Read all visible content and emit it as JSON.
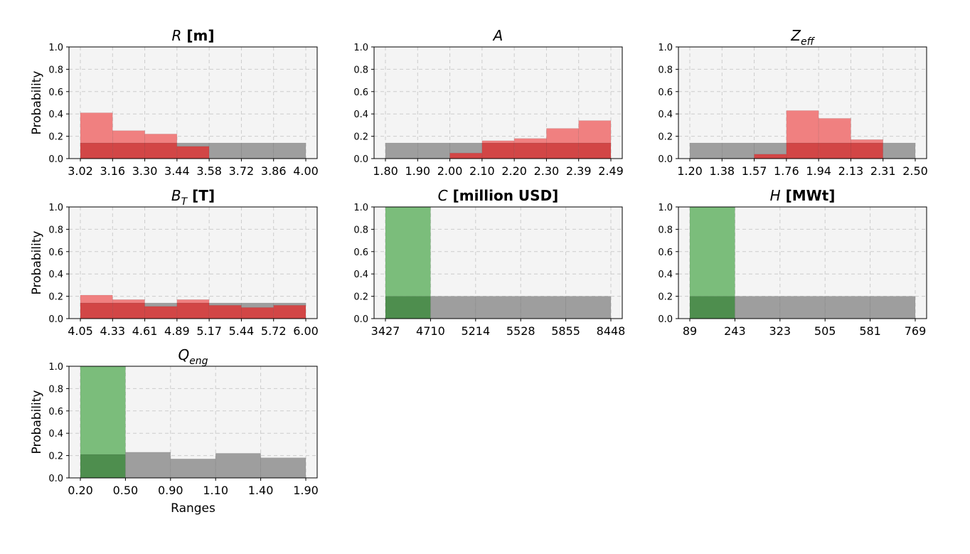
{
  "figure": {
    "ylabel": "Probability",
    "xlabel": "Ranges"
  },
  "colors": {
    "panel_bg": "#f4f4f4",
    "grid": "#cccccc",
    "prior": "#9e9e9e",
    "posterior_red": "#f08080",
    "overlap_red": "#d24646",
    "posterior_green": "#7bbd7b",
    "overlap_green": "#4e8e4e"
  },
  "chart_data": [
    {
      "type": "bar",
      "title": {
        "italic": "R",
        "bold": " [m]"
      },
      "ylim": [
        0,
        1.0
      ],
      "yticks": [
        "0.0",
        "0.2",
        "0.4",
        "0.6",
        "0.8",
        "1.0"
      ],
      "xticks": [
        "3.02",
        "3.16",
        "3.30",
        "3.44",
        "3.58",
        "3.72",
        "3.86",
        "4.00"
      ],
      "grid": true,
      "posterior_color": "red",
      "series": [
        {
          "role": "prior",
          "values": [
            0.14,
            0.14,
            0.14,
            0.14,
            0.14,
            0.14,
            0.14
          ]
        },
        {
          "role": "posterior",
          "values": [
            0.41,
            0.25,
            0.22,
            0.11,
            0.0,
            0.0,
            0.0
          ]
        }
      ]
    },
    {
      "type": "bar",
      "title": {
        "italic": "A",
        "bold": ""
      },
      "ylim": [
        0,
        1.0
      ],
      "yticks": [
        "0.0",
        "0.2",
        "0.4",
        "0.6",
        "0.8",
        "1.0"
      ],
      "xticks": [
        "1.80",
        "1.90",
        "2.00",
        "2.10",
        "2.20",
        "2.30",
        "2.39",
        "2.49"
      ],
      "grid": true,
      "posterior_color": "red",
      "series": [
        {
          "role": "prior",
          "values": [
            0.14,
            0.14,
            0.14,
            0.14,
            0.14,
            0.14,
            0.14
          ]
        },
        {
          "role": "posterior",
          "values": [
            0.0,
            0.0,
            0.05,
            0.16,
            0.18,
            0.27,
            0.34
          ]
        }
      ]
    },
    {
      "type": "bar",
      "title": {
        "italic": "Z",
        "sub": "eff",
        "bold": ""
      },
      "ylim": [
        0,
        1.0
      ],
      "yticks": [
        "0.0",
        "0.2",
        "0.4",
        "0.6",
        "0.8",
        "1.0"
      ],
      "xticks": [
        "1.20",
        "1.38",
        "1.57",
        "1.76",
        "1.94",
        "2.13",
        "2.31",
        "2.50"
      ],
      "grid": true,
      "posterior_color": "red",
      "series": [
        {
          "role": "prior",
          "values": [
            0.14,
            0.14,
            0.14,
            0.14,
            0.14,
            0.14,
            0.14
          ]
        },
        {
          "role": "posterior",
          "values": [
            0.0,
            0.0,
            0.04,
            0.43,
            0.36,
            0.17,
            0.0
          ]
        }
      ]
    },
    {
      "type": "bar",
      "title": {
        "italic": "B",
        "sub": "T",
        "bold": " [T]"
      },
      "ylim": [
        0,
        1.0
      ],
      "yticks": [
        "0.0",
        "0.2",
        "0.4",
        "0.6",
        "0.8",
        "1.0"
      ],
      "xticks": [
        "4.05",
        "4.33",
        "4.61",
        "4.89",
        "5.17",
        "5.44",
        "5.72",
        "6.00"
      ],
      "grid": true,
      "posterior_color": "red",
      "series": [
        {
          "role": "prior",
          "values": [
            0.14,
            0.14,
            0.14,
            0.14,
            0.14,
            0.14,
            0.14
          ]
        },
        {
          "role": "posterior",
          "values": [
            0.21,
            0.17,
            0.11,
            0.17,
            0.12,
            0.1,
            0.12
          ]
        }
      ]
    },
    {
      "type": "bar",
      "title": {
        "italic": "C",
        "bold": " [million USD]"
      },
      "ylim": [
        0,
        1.0
      ],
      "yticks": [
        "0.0",
        "0.2",
        "0.4",
        "0.6",
        "0.8",
        "1.0"
      ],
      "xticks": [
        "3427",
        "4710",
        "5214",
        "5528",
        "5855",
        "8448"
      ],
      "grid": true,
      "posterior_color": "green",
      "series": [
        {
          "role": "prior",
          "values": [
            0.2,
            0.2,
            0.2,
            0.2,
            0.2
          ]
        },
        {
          "role": "posterior",
          "values": [
            1.0,
            0.0,
            0.0,
            0.0,
            0.0
          ]
        }
      ]
    },
    {
      "type": "bar",
      "title": {
        "italic": "H",
        "bold": " [MWt]"
      },
      "ylim": [
        0,
        1.0
      ],
      "yticks": [
        "0.0",
        "0.2",
        "0.4",
        "0.6",
        "0.8",
        "1.0"
      ],
      "xticks": [
        "89",
        "243",
        "323",
        "505",
        "581",
        "769"
      ],
      "grid": true,
      "posterior_color": "green",
      "series": [
        {
          "role": "prior",
          "values": [
            0.2,
            0.2,
            0.2,
            0.2,
            0.2
          ]
        },
        {
          "role": "posterior",
          "values": [
            1.0,
            0.0,
            0.0,
            0.0,
            0.0
          ]
        }
      ]
    },
    {
      "type": "bar",
      "title": {
        "italic": "Q",
        "sub": "eng",
        "bold": ""
      },
      "ylim": [
        0,
        1.0
      ],
      "yticks": [
        "0.0",
        "0.2",
        "0.4",
        "0.6",
        "0.8",
        "1.0"
      ],
      "xticks": [
        "0.20",
        "0.50",
        "0.90",
        "1.10",
        "1.40",
        "1.90"
      ],
      "grid": true,
      "posterior_color": "green",
      "series": [
        {
          "role": "prior",
          "values": [
            0.21,
            0.23,
            0.17,
            0.22,
            0.18
          ]
        },
        {
          "role": "posterior",
          "values": [
            1.0,
            0.0,
            0.0,
            0.0,
            0.0
          ]
        }
      ]
    }
  ]
}
